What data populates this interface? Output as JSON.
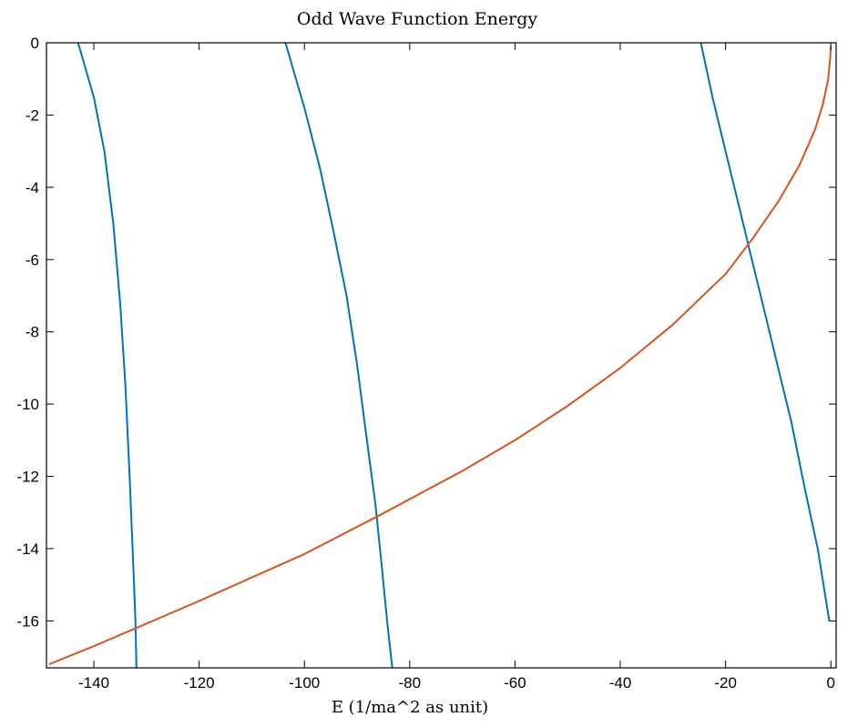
{
  "chart_data": {
    "type": "line",
    "title": "Odd Wave Function Energy",
    "xlabel": "E (1/ma^2 as unit)",
    "ylabel": "",
    "xlim": [
      -149,
      1
    ],
    "ylim": [
      -17.3,
      0
    ],
    "xticks": [
      -140,
      -120,
      -100,
      -80,
      -60,
      -40,
      -20,
      0
    ],
    "yticks": [
      0,
      -2,
      -4,
      -6,
      -8,
      -10,
      -12,
      -14,
      -16
    ],
    "xtick_labels": [
      "-140",
      "-120",
      "-100",
      "-80",
      "-60",
      "-40",
      "-20",
      "0"
    ],
    "ytick_labels": [
      "0",
      "-2",
      "-4",
      "-6",
      "-8",
      "-10",
      "-12",
      "-14",
      "-16"
    ],
    "grid": false,
    "colors": {
      "blue": "#0072BD",
      "orange": "#D95319"
    },
    "series": [
      {
        "color": "#0072BD",
        "points": [
          [
            -143.0,
            0
          ],
          [
            -140.0,
            -1.5
          ],
          [
            -138.0,
            -3.0
          ],
          [
            -136.3,
            -5.0
          ],
          [
            -135.0,
            -7.2
          ],
          [
            -134.0,
            -9.5
          ],
          [
            -133.2,
            -12.0
          ],
          [
            -132.5,
            -14.5
          ],
          [
            -132.1,
            -16.0
          ],
          [
            -131.9,
            -17.3
          ]
        ]
      },
      {
        "color": "#0072BD",
        "points": [
          [
            -103.6,
            0
          ],
          [
            -100.0,
            -1.8
          ],
          [
            -97.0,
            -3.5
          ],
          [
            -94.5,
            -5.2
          ],
          [
            -92.0,
            -7.0
          ],
          [
            -90.0,
            -8.9
          ],
          [
            -88.3,
            -10.8
          ],
          [
            -86.5,
            -12.8
          ],
          [
            -85.3,
            -14.5
          ],
          [
            -84.3,
            -16.0
          ],
          [
            -83.3,
            -17.3
          ]
        ]
      },
      {
        "color": "#0072BD",
        "points": [
          [
            -24.7,
            0
          ],
          [
            -22.5,
            -1.5
          ],
          [
            -20.0,
            -3.0
          ],
          [
            -17.5,
            -4.5
          ],
          [
            -15.0,
            -6.0
          ],
          [
            -12.5,
            -7.5
          ],
          [
            -10.0,
            -9.0
          ],
          [
            -7.5,
            -10.5
          ],
          [
            -5.0,
            -12.3
          ],
          [
            -2.5,
            -14.0
          ],
          [
            -0.3,
            -16.0
          ]
        ]
      },
      {
        "color": "#D95319",
        "points": [
          [
            -148.5,
            -17.2
          ],
          [
            -140.0,
            -16.7
          ],
          [
            -132.0,
            -16.2
          ],
          [
            -120.0,
            -15.45
          ],
          [
            -100.0,
            -14.15
          ],
          [
            -86.0,
            -13.1
          ],
          [
            -70.0,
            -11.85
          ],
          [
            -60.0,
            -11.0
          ],
          [
            -50.0,
            -10.05
          ],
          [
            -40.0,
            -9.0
          ],
          [
            -30.0,
            -7.8
          ],
          [
            -20.0,
            -6.4
          ],
          [
            -15.0,
            -5.45
          ],
          [
            -10.0,
            -4.4
          ],
          [
            -6.0,
            -3.4
          ],
          [
            -3.0,
            -2.4
          ],
          [
            -1.5,
            -1.7
          ],
          [
            -0.5,
            -1.0
          ],
          [
            -0.1,
            -0.4
          ],
          [
            0.0,
            -0.1
          ]
        ]
      }
    ]
  }
}
